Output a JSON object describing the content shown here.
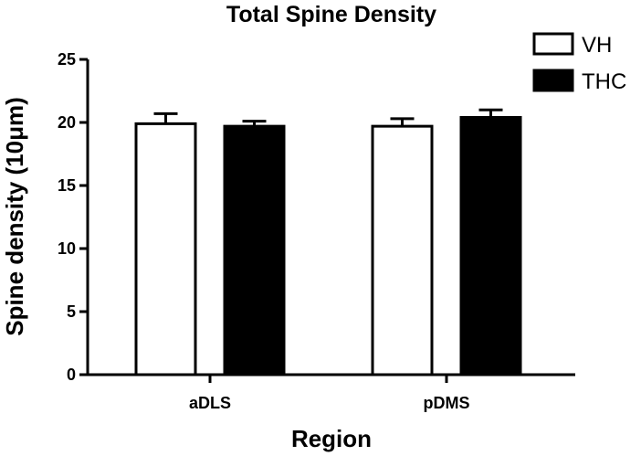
{
  "chart_data": {
    "type": "bar",
    "title": "Total  Spine Density",
    "xlabel": "Region",
    "ylabel": "Spine density (10μm)",
    "categories": [
      "aDLS",
      "pDMS"
    ],
    "ylim": [
      0,
      25
    ],
    "yticks": [
      0,
      5,
      10,
      15,
      20,
      25
    ],
    "grid": false,
    "legend": "top-right",
    "series": [
      {
        "name": "VH",
        "values": [
          19.9,
          19.7
        ],
        "errors": [
          0.8,
          0.6
        ],
        "color": "#ffffff"
      },
      {
        "name": "THC",
        "values": [
          19.7,
          20.4
        ],
        "errors": [
          0.4,
          0.6
        ],
        "color": "#000000"
      }
    ]
  }
}
